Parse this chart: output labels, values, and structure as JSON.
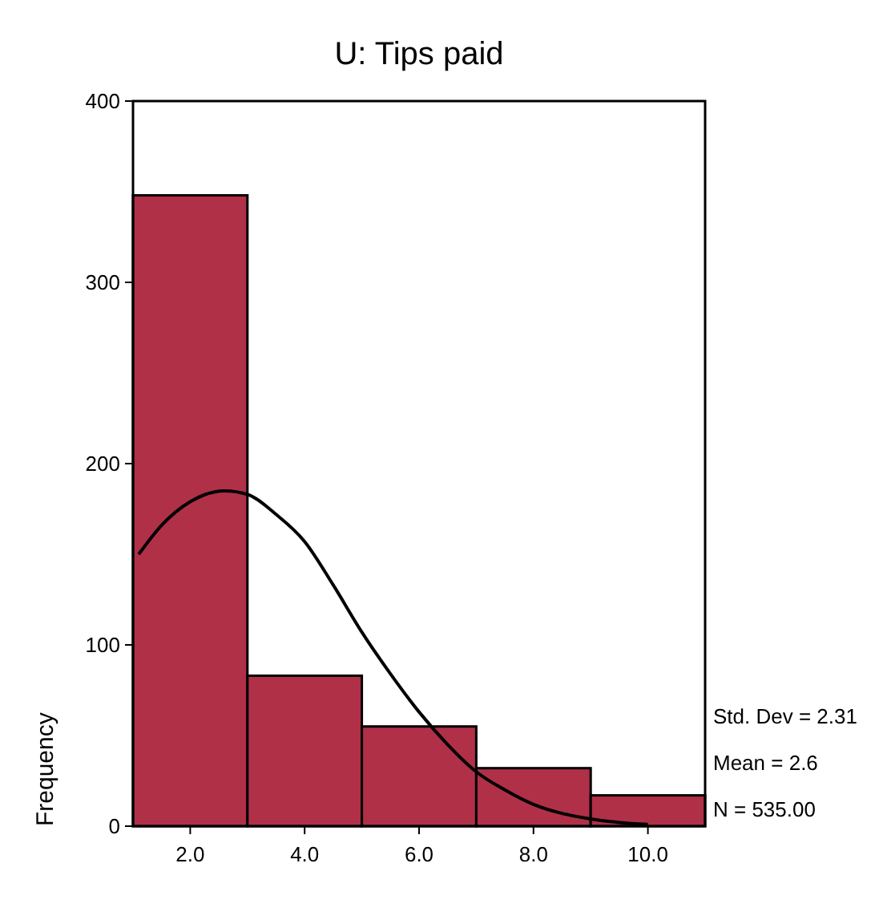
{
  "chart_data": {
    "type": "histogram",
    "title": "U: Tips paid",
    "ylabel": "Frequency",
    "bins": [
      1,
      3,
      5,
      7,
      9,
      11
    ],
    "values": [
      348,
      83,
      55,
      32,
      17
    ],
    "color": "#b03048",
    "series": [
      {
        "type": "line",
        "color": "#000000",
        "x": [
          1.1,
          1.5,
          2,
          2.6,
          3,
          3.5,
          4,
          4.5,
          5,
          5.5,
          6,
          6.5,
          7,
          7.5,
          8,
          8.5,
          9,
          9.5,
          10
        ],
        "values": [
          150,
          166,
          179,
          185,
          183,
          172,
          157,
          133,
          107,
          84,
          63,
          45,
          30,
          20,
          12,
          7,
          4,
          2,
          1
        ]
      }
    ],
    "xlim": [
      1,
      11
    ],
    "xticks": [
      {
        "value": 2,
        "label": "2.0"
      },
      {
        "value": 4,
        "label": "4.0"
      },
      {
        "value": 6,
        "label": "6.0"
      },
      {
        "value": 8,
        "label": "8.0"
      },
      {
        "value": 10,
        "label": "10.0"
      }
    ],
    "ylim": [
      0,
      400
    ],
    "yticks": [
      0,
      100,
      200,
      300,
      400
    ],
    "annotations": [
      "Std. Dev = 2.31",
      "Mean = 2.6",
      "N = 535.00"
    ]
  }
}
